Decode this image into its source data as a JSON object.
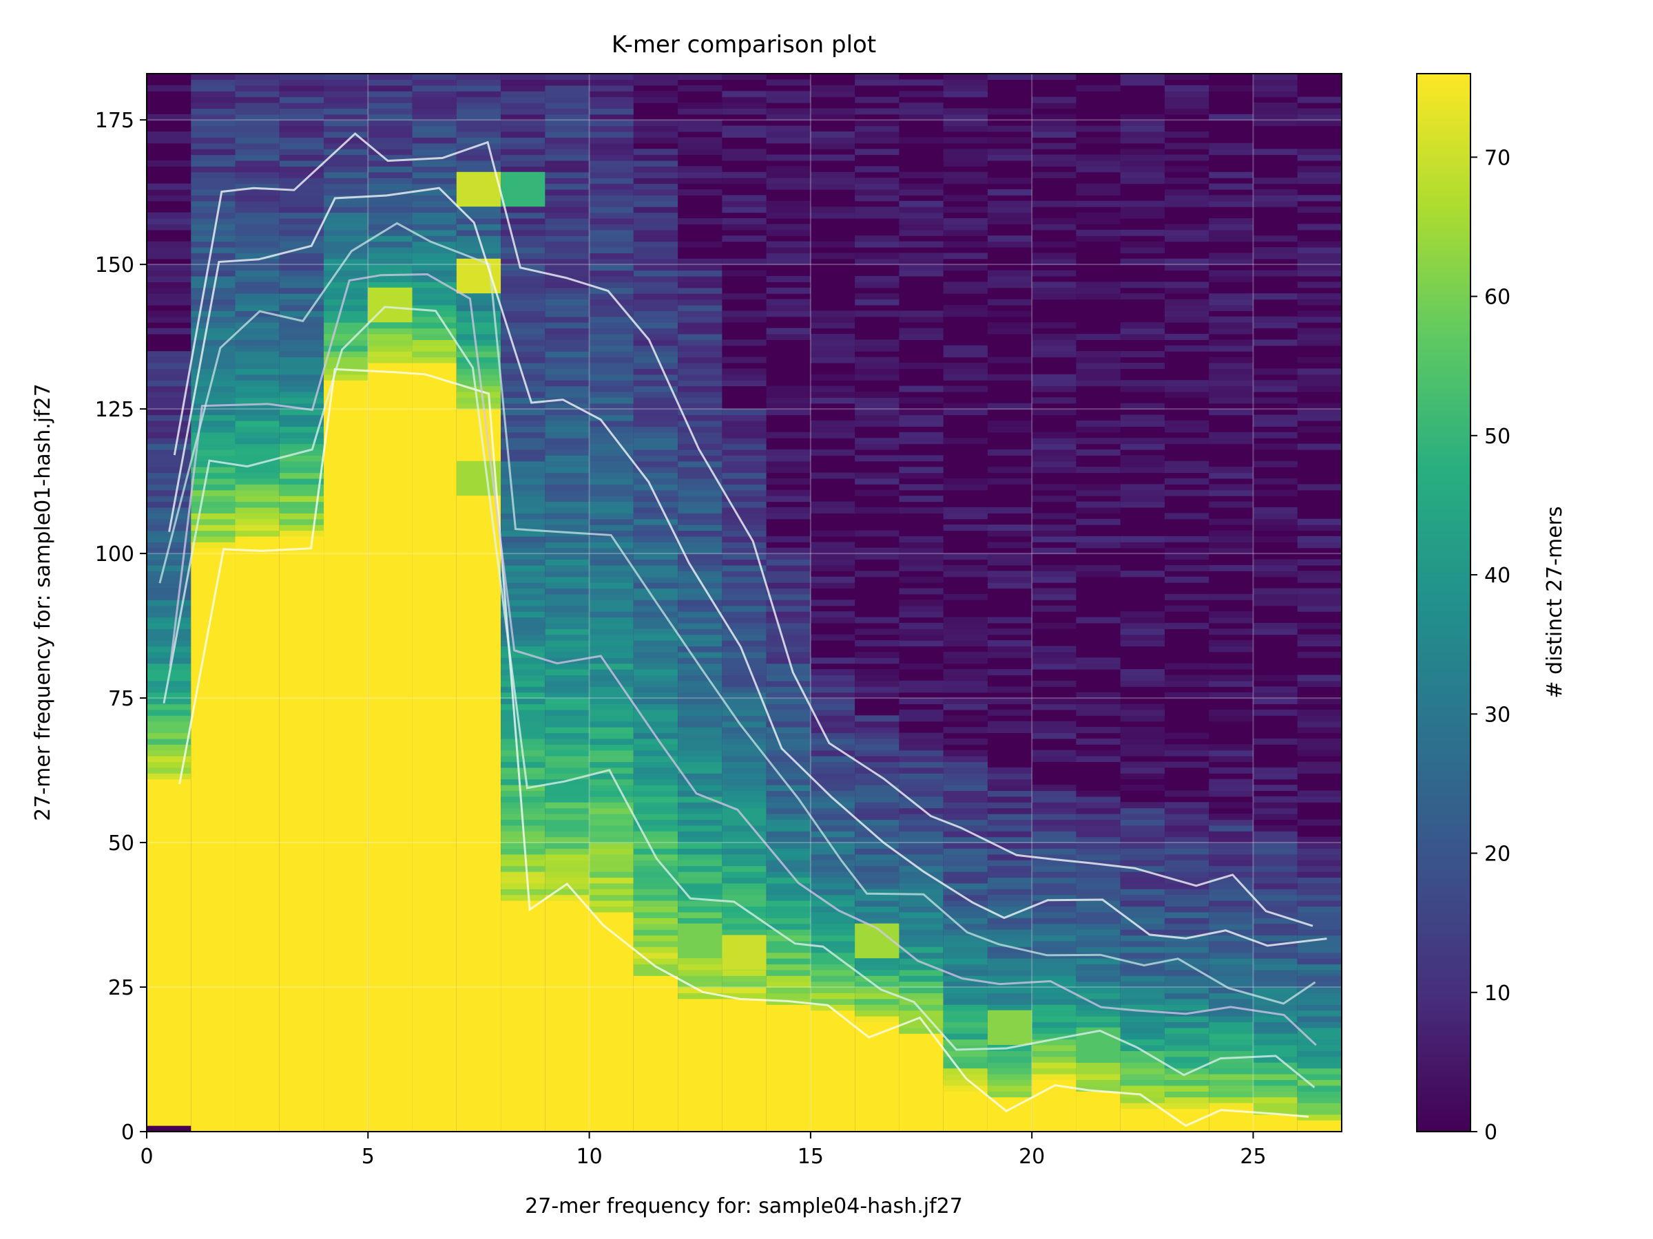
{
  "chart_data": {
    "type": "heatmap",
    "title": "K-mer comparison plot",
    "xlabel": "27-mer frequency for: sample04-hash.jf27",
    "ylabel": "27-mer frequency for: sample01-hash.jf27",
    "colorbar_label": "# distinct 27-mers",
    "colormap": "viridis",
    "xlim": [
      0,
      27
    ],
    "ylim": [
      0,
      183
    ],
    "x_ticks": [
      0,
      5,
      10,
      15,
      20,
      25
    ],
    "y_ticks": [
      0,
      25,
      50,
      75,
      100,
      125,
      150,
      175
    ],
    "colorbar_range": [
      0,
      76
    ],
    "colorbar_ticks": [
      0,
      10,
      20,
      30,
      40,
      50,
      60,
      70
    ],
    "grid": true,
    "contour_overlay": true,
    "x_bin_width": 1,
    "y_bin_height": 1,
    "saturation_boundary_upper_y_by_x_bin": [
      {
        "x": 0,
        "y": 61
      },
      {
        "x": 1,
        "y": 101
      },
      {
        "x": 2,
        "y": 103
      },
      {
        "x": 3,
        "y": 103
      },
      {
        "x": 4,
        "y": 130
      },
      {
        "x": 5,
        "y": 133
      },
      {
        "x": 6,
        "y": 133
      },
      {
        "x": 7,
        "y": 125
      },
      {
        "x": 8,
        "y": 40
      },
      {
        "x": 9,
        "y": 40
      },
      {
        "x": 10,
        "y": 38
      },
      {
        "x": 11,
        "y": 27
      },
      {
        "x": 12,
        "y": 23
      },
      {
        "x": 13,
        "y": 23
      },
      {
        "x": 14,
        "y": 22
      },
      {
        "x": 15,
        "y": 21
      },
      {
        "x": 16,
        "y": 19
      },
      {
        "x": 17,
        "y": 17
      },
      {
        "x": 18,
        "y": 7
      },
      {
        "x": 19,
        "y": 6
      },
      {
        "x": 20,
        "y": 9
      },
      {
        "x": 21,
        "y": 7
      },
      {
        "x": 22,
        "y": 4
      },
      {
        "x": 23,
        "y": 4
      },
      {
        "x": 24,
        "y": 4
      },
      {
        "x": 25,
        "y": 3
      },
      {
        "x": 26,
        "y": 2
      }
    ],
    "signal_extent_upper_y_by_x_bin": [
      {
        "x": 0,
        "y": 135
      },
      {
        "x": 1,
        "y": 183
      },
      {
        "x": 2,
        "y": 183
      },
      {
        "x": 3,
        "y": 183
      },
      {
        "x": 4,
        "y": 183
      },
      {
        "x": 5,
        "y": 183
      },
      {
        "x": 6,
        "y": 183
      },
      {
        "x": 7,
        "y": 183
      },
      {
        "x": 8,
        "y": 183
      },
      {
        "x": 9,
        "y": 183
      },
      {
        "x": 10,
        "y": 183
      },
      {
        "x": 11,
        "y": 170
      },
      {
        "x": 12,
        "y": 150
      },
      {
        "x": 13,
        "y": 125
      },
      {
        "x": 14,
        "y": 100
      },
      {
        "x": 15,
        "y": 80
      },
      {
        "x": 16,
        "y": 72
      },
      {
        "x": 17,
        "y": 68
      },
      {
        "x": 18,
        "y": 65
      },
      {
        "x": 19,
        "y": 62
      },
      {
        "x": 20,
        "y": 60
      },
      {
        "x": 21,
        "y": 58
      },
      {
        "x": 22,
        "y": 56
      },
      {
        "x": 23,
        "y": 55
      },
      {
        "x": 24,
        "y": 54
      },
      {
        "x": 25,
        "y": 52
      },
      {
        "x": 26,
        "y": 50
      }
    ],
    "notable_cells": [
      {
        "x": 0,
        "y": 0,
        "value": 0
      },
      {
        "x": 7,
        "y": 160,
        "value": 70
      },
      {
        "x": 7,
        "y": 145,
        "value": 72
      },
      {
        "x": 7,
        "y": 110,
        "value": 65
      },
      {
        "x": 8,
        "y": 160,
        "value": 50
      },
      {
        "x": 5,
        "y": 140,
        "value": 68
      },
      {
        "x": 12,
        "y": 30,
        "value": 60
      },
      {
        "x": 13,
        "y": 28,
        "value": 70
      },
      {
        "x": 16,
        "y": 30,
        "value": 65
      },
      {
        "x": 19,
        "y": 15,
        "value": 62
      },
      {
        "x": 21,
        "y": 12,
        "value": 55
      }
    ]
  }
}
